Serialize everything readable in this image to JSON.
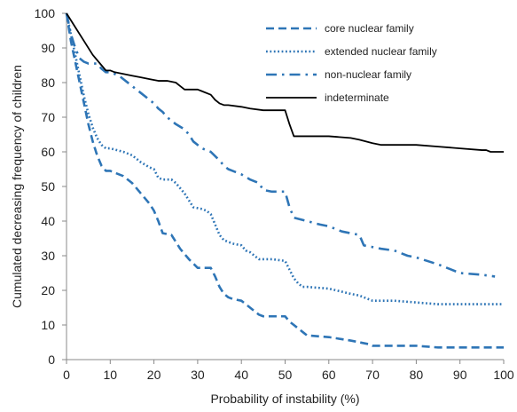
{
  "chart_data": {
    "type": "line",
    "xlabel": "Probability of instability (%)",
    "ylabel": "Cumulated decreasing frequency of children",
    "xlim": [
      0,
      100
    ],
    "ylim": [
      0,
      100
    ],
    "xticks": [
      0,
      10,
      20,
      30,
      40,
      50,
      60,
      70,
      80,
      90,
      100
    ],
    "yticks": [
      0,
      10,
      20,
      30,
      40,
      50,
      60,
      70,
      80,
      90,
      100
    ],
    "grid": false,
    "legend_position": "top-right",
    "series": [
      {
        "name": "core nuclear family",
        "style": "dashed",
        "color": "#2e75b6",
        "x": [
          0,
          1,
          2,
          3,
          4,
          5,
          6,
          7,
          8,
          9,
          10,
          13,
          15,
          17,
          19,
          20,
          21,
          22,
          24,
          25,
          26,
          28,
          30,
          31,
          33,
          34,
          35,
          36,
          37,
          38,
          40,
          41,
          42,
          43,
          44,
          45,
          48,
          50,
          51,
          52,
          53,
          54,
          55,
          60,
          65,
          67,
          69,
          70,
          75,
          80,
          85,
          90,
          95,
          100
        ],
        "y": [
          100,
          92,
          86,
          80,
          74,
          68,
          63,
          59,
          56,
          54.5,
          54.5,
          53,
          51,
          48,
          45,
          43,
          40,
          36.5,
          36,
          34,
          32,
          29,
          26.5,
          26.5,
          26.5,
          24,
          21,
          19,
          18,
          17.5,
          17,
          16,
          15,
          14,
          13,
          12.5,
          12.5,
          12.5,
          11,
          10,
          9,
          8,
          7,
          6.5,
          5.5,
          5,
          4.5,
          4,
          4,
          4,
          3.5,
          3.5,
          3.5,
          3.5
        ]
      },
      {
        "name": "extended nuclear family",
        "style": "dotted",
        "color": "#2e75b6",
        "x": [
          0,
          1,
          2,
          3,
          4,
          5,
          6,
          7,
          8,
          9,
          10,
          13,
          15,
          17,
          19,
          20,
          21,
          22,
          24,
          25,
          27,
          29,
          31,
          32,
          33,
          34,
          35,
          36,
          38,
          40,
          41,
          42,
          43,
          44,
          45,
          47,
          50,
          51,
          52,
          53,
          54,
          55,
          60,
          65,
          67,
          70,
          75,
          80,
          85,
          90,
          95,
          100
        ],
        "y": [
          100,
          94,
          88,
          82,
          76,
          71,
          67,
          64,
          62,
          61,
          61,
          60,
          59,
          57,
          55.5,
          55,
          52.5,
          52,
          52,
          51,
          48,
          44,
          43.5,
          43,
          42,
          39,
          36,
          34.5,
          33.5,
          33,
          31.5,
          31,
          30,
          29,
          29,
          29,
          28.5,
          26,
          23.5,
          22,
          21,
          21,
          20.5,
          19,
          18.5,
          17,
          17,
          16.5,
          16,
          16,
          16,
          16
        ]
      },
      {
        "name": "non-nuclear family",
        "style": "dashdot",
        "color": "#2e75b6",
        "x": [
          0,
          1,
          2,
          3,
          4,
          5,
          6,
          7,
          8,
          9,
          10,
          11,
          12,
          13,
          15,
          17,
          19,
          20,
          21,
          22,
          23,
          25,
          27,
          28,
          29,
          31,
          33,
          35,
          36,
          37,
          38,
          40,
          42,
          43,
          44,
          45,
          47,
          50,
          51,
          52,
          55,
          58,
          60,
          63,
          65,
          67,
          68,
          70,
          72,
          75,
          78,
          80,
          85,
          90,
          95,
          98
        ],
        "y": [
          100,
          94,
          90,
          87,
          86,
          85.5,
          85.5,
          85.5,
          84,
          83,
          83,
          82.5,
          82,
          81,
          79,
          77,
          75,
          74,
          72.5,
          71.5,
          70,
          68,
          66.5,
          65,
          63,
          61,
          60,
          57.5,
          56,
          55,
          54.5,
          53.5,
          52,
          51.5,
          51,
          49,
          48.5,
          48.5,
          44,
          41,
          40,
          39,
          38.5,
          37,
          36.5,
          36,
          33,
          32.5,
          32,
          31.5,
          30,
          29.5,
          27.5,
          25,
          24.5,
          24
        ]
      },
      {
        "name": "indeterminate",
        "style": "solid",
        "color": "#000000",
        "x": [
          0,
          2,
          4,
          6,
          8,
          9,
          10,
          11,
          13,
          15,
          17,
          19,
          21,
          23,
          25,
          26,
          27,
          30,
          31,
          33,
          34,
          35,
          36,
          37,
          40,
          42,
          45,
          48,
          50,
          51,
          52,
          53,
          55,
          60,
          65,
          67,
          70,
          72,
          75,
          80,
          85,
          90,
          95,
          96,
          97,
          100
        ],
        "y": [
          100,
          96,
          92,
          88,
          85,
          83.5,
          83.5,
          83,
          82.5,
          82,
          81.5,
          81,
          80.5,
          80.5,
          80,
          79,
          78,
          78,
          77.5,
          76.5,
          75,
          74,
          73.5,
          73.5,
          73,
          72.5,
          72,
          72,
          72,
          68,
          64.5,
          64.5,
          64.5,
          64.5,
          64,
          63.5,
          62.5,
          62,
          62,
          62,
          61.5,
          61,
          60.5,
          60.5,
          60,
          60
        ]
      }
    ]
  }
}
